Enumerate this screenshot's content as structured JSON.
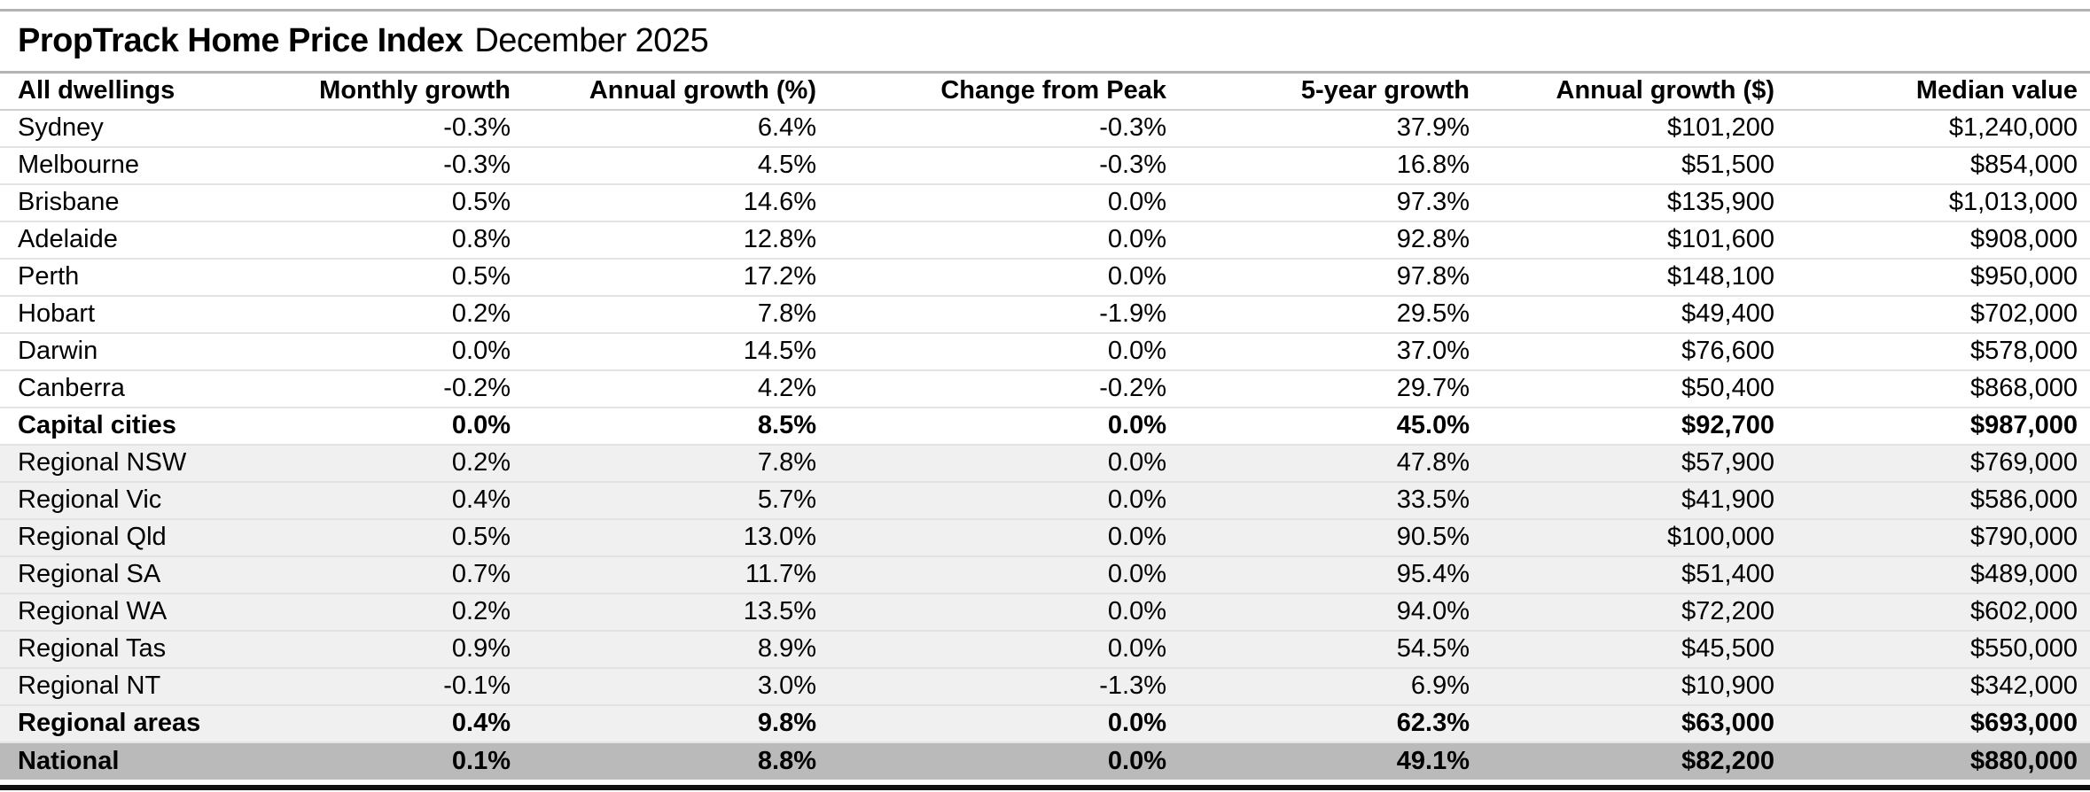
{
  "title": {
    "main": "PropTrack Home Price Index",
    "period": "December 2025"
  },
  "colors": {
    "row_light_shade": "#f0f0f0",
    "row_dark_shade": "#bababa",
    "row_divider": "#e3e3e3",
    "structural_rule": "#b3b3b3",
    "bottom_bar": "#111111",
    "text": "#000000"
  },
  "chart_data": {
    "type": "table",
    "title": "PropTrack Home Price Index",
    "subtitle": "December 2025",
    "columns": [
      "All dwellings",
      "Monthly growth",
      "Annual growth (%)",
      "Change from Peak",
      "5-year growth",
      "Annual growth ($)",
      "Median value"
    ],
    "rows": [
      {
        "label": "Sydney",
        "monthly_growth": "-0.3%",
        "annual_growth_pct": "6.4%",
        "change_from_peak": "-0.3%",
        "five_year_growth": "37.9%",
        "annual_growth_dollars": "$101,200",
        "median_value": "$1,240,000",
        "bold": false,
        "shade": "white"
      },
      {
        "label": "Melbourne",
        "monthly_growth": "-0.3%",
        "annual_growth_pct": "4.5%",
        "change_from_peak": "-0.3%",
        "five_year_growth": "16.8%",
        "annual_growth_dollars": "$51,500",
        "median_value": "$854,000",
        "bold": false,
        "shade": "white"
      },
      {
        "label": "Brisbane",
        "monthly_growth": "0.5%",
        "annual_growth_pct": "14.6%",
        "change_from_peak": "0.0%",
        "five_year_growth": "97.3%",
        "annual_growth_dollars": "$135,900",
        "median_value": "$1,013,000",
        "bold": false,
        "shade": "white"
      },
      {
        "label": "Adelaide",
        "monthly_growth": "0.8%",
        "annual_growth_pct": "12.8%",
        "change_from_peak": "0.0%",
        "five_year_growth": "92.8%",
        "annual_growth_dollars": "$101,600",
        "median_value": "$908,000",
        "bold": false,
        "shade": "white"
      },
      {
        "label": "Perth",
        "monthly_growth": "0.5%",
        "annual_growth_pct": "17.2%",
        "change_from_peak": "0.0%",
        "five_year_growth": "97.8%",
        "annual_growth_dollars": "$148,100",
        "median_value": "$950,000",
        "bold": false,
        "shade": "white"
      },
      {
        "label": "Hobart",
        "monthly_growth": "0.2%",
        "annual_growth_pct": "7.8%",
        "change_from_peak": "-1.9%",
        "five_year_growth": "29.5%",
        "annual_growth_dollars": "$49,400",
        "median_value": "$702,000",
        "bold": false,
        "shade": "white"
      },
      {
        "label": "Darwin",
        "monthly_growth": "0.0%",
        "annual_growth_pct": "14.5%",
        "change_from_peak": "0.0%",
        "five_year_growth": "37.0%",
        "annual_growth_dollars": "$76,600",
        "median_value": "$578,000",
        "bold": false,
        "shade": "white"
      },
      {
        "label": "Canberra",
        "monthly_growth": "-0.2%",
        "annual_growth_pct": "4.2%",
        "change_from_peak": "-0.2%",
        "five_year_growth": "29.7%",
        "annual_growth_dollars": "$50,400",
        "median_value": "$868,000",
        "bold": false,
        "shade": "white"
      },
      {
        "label": "Capital cities",
        "monthly_growth": "0.0%",
        "annual_growth_pct": "8.5%",
        "change_from_peak": "0.0%",
        "five_year_growth": "45.0%",
        "annual_growth_dollars": "$92,700",
        "median_value": "$987,000",
        "bold": true,
        "shade": "white"
      },
      {
        "label": "Regional NSW",
        "monthly_growth": "0.2%",
        "annual_growth_pct": "7.8%",
        "change_from_peak": "0.0%",
        "five_year_growth": "47.8%",
        "annual_growth_dollars": "$57,900",
        "median_value": "$769,000",
        "bold": false,
        "shade": "light"
      },
      {
        "label": "Regional Vic",
        "monthly_growth": "0.4%",
        "annual_growth_pct": "5.7%",
        "change_from_peak": "0.0%",
        "five_year_growth": "33.5%",
        "annual_growth_dollars": "$41,900",
        "median_value": "$586,000",
        "bold": false,
        "shade": "light"
      },
      {
        "label": "Regional Qld",
        "monthly_growth": "0.5%",
        "annual_growth_pct": "13.0%",
        "change_from_peak": "0.0%",
        "five_year_growth": "90.5%",
        "annual_growth_dollars": "$100,000",
        "median_value": "$790,000",
        "bold": false,
        "shade": "light"
      },
      {
        "label": "Regional SA",
        "monthly_growth": "0.7%",
        "annual_growth_pct": "11.7%",
        "change_from_peak": "0.0%",
        "five_year_growth": "95.4%",
        "annual_growth_dollars": "$51,400",
        "median_value": "$489,000",
        "bold": false,
        "shade": "light"
      },
      {
        "label": "Regional WA",
        "monthly_growth": "0.2%",
        "annual_growth_pct": "13.5%",
        "change_from_peak": "0.0%",
        "five_year_growth": "94.0%",
        "annual_growth_dollars": "$72,200",
        "median_value": "$602,000",
        "bold": false,
        "shade": "light"
      },
      {
        "label": "Regional Tas",
        "monthly_growth": "0.9%",
        "annual_growth_pct": "8.9%",
        "change_from_peak": "0.0%",
        "five_year_growth": "54.5%",
        "annual_growth_dollars": "$45,500",
        "median_value": "$550,000",
        "bold": false,
        "shade": "light"
      },
      {
        "label": "Regional NT",
        "monthly_growth": "-0.1%",
        "annual_growth_pct": "3.0%",
        "change_from_peak": "-1.3%",
        "five_year_growth": "6.9%",
        "annual_growth_dollars": "$10,900",
        "median_value": "$342,000",
        "bold": false,
        "shade": "light"
      },
      {
        "label": "Regional areas",
        "monthly_growth": "0.4%",
        "annual_growth_pct": "9.8%",
        "change_from_peak": "0.0%",
        "five_year_growth": "62.3%",
        "annual_growth_dollars": "$63,000",
        "median_value": "$693,000",
        "bold": true,
        "shade": "light",
        "label_clipped": true
      },
      {
        "label": "National",
        "monthly_growth": "0.1%",
        "annual_growth_pct": "8.8%",
        "change_from_peak": "0.0%",
        "five_year_growth": "49.1%",
        "annual_growth_dollars": "$82,200",
        "median_value": "$880,000",
        "bold": true,
        "shade": "dark"
      }
    ]
  }
}
